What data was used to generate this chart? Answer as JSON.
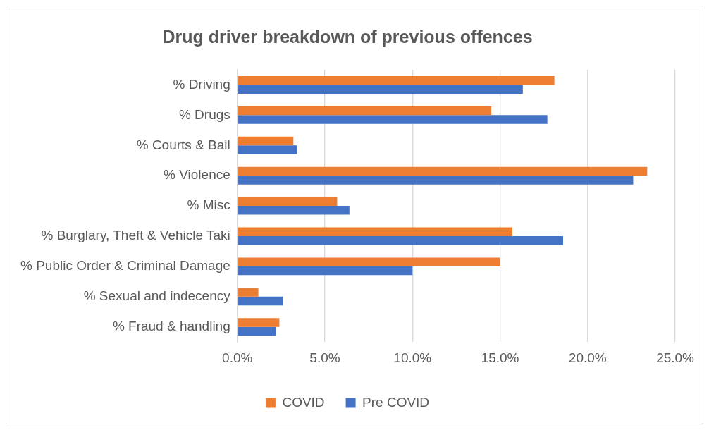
{
  "chart_data": {
    "type": "bar",
    "orientation": "horizontal",
    "title": "Drug driver breakdown of previous offences",
    "categories": [
      "% Driving",
      "% Drugs",
      "% Courts & Bail",
      "% Violence",
      "% Misc",
      "% Burglary, Theft & Vehicle Taki",
      "% Public Order & Criminal Damage",
      "% Sexual and indecency",
      "% Fraud & handling"
    ],
    "series": [
      {
        "name": "COVID",
        "color": "#ed7d31",
        "values": [
          18.1,
          14.5,
          3.2,
          23.4,
          5.7,
          15.7,
          15.0,
          1.2,
          2.4
        ]
      },
      {
        "name": "Pre COVID",
        "color": "#4472c4",
        "values": [
          16.3,
          17.7,
          3.4,
          22.6,
          6.4,
          18.6,
          10.0,
          2.6,
          2.2
        ]
      }
    ],
    "xlim": [
      0,
      25
    ],
    "xticks": [
      {
        "value": 0,
        "label": "0.0%"
      },
      {
        "value": 5,
        "label": "5.0%"
      },
      {
        "value": 10,
        "label": "10.0%"
      },
      {
        "value": 15,
        "label": "15.0%"
      },
      {
        "value": 20,
        "label": "20.0%"
      },
      {
        "value": 25,
        "label": "25.0%"
      }
    ],
    "grid": "x",
    "legend": "bottom"
  }
}
